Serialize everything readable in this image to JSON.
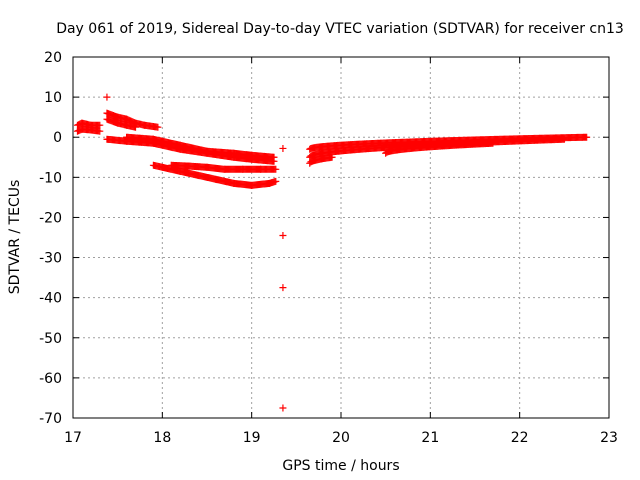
{
  "chart_data": {
    "type": "scatter",
    "title": "Day 061 of 2019, Sidereal Day-to-day VTEC variation (SDTVAR) for receiver cn13",
    "xlabel": "GPS time / hours",
    "ylabel": "SDTVAR / TECUs",
    "xlim": [
      17,
      23
    ],
    "ylim": [
      -70,
      20
    ],
    "xticks": [
      17,
      18,
      19,
      20,
      21,
      22,
      23
    ],
    "yticks": [
      20,
      10,
      0,
      -10,
      -20,
      -30,
      -40,
      -50,
      -60,
      -70
    ],
    "grid": true,
    "marker": "+",
    "color": "#ff0000",
    "series": [
      {
        "name": "sdtvar",
        "tracks": [
          {
            "x": [
              17.05,
              17.1,
              17.2,
              17.3
            ],
            "y": [
              3,
              3.5,
              3,
              3
            ]
          },
          {
            "x": [
              17.05,
              17.1,
              17.2,
              17.3
            ],
            "y": [
              1.5,
              2,
              1.8,
              1.5
            ]
          },
          {
            "x": [
              17.38,
              17.5,
              17.6,
              17.7,
              17.8,
              17.95
            ],
            "y": [
              6,
              5,
              4.5,
              3.5,
              3,
              2.5
            ]
          },
          {
            "x": [
              17.38,
              17.5,
              17.6,
              17.7
            ],
            "y": [
              4.5,
              3.5,
              3,
              2.5
            ]
          },
          {
            "x": [
              17.38,
              17.6,
              17.9,
              18.2,
              18.5,
              18.8,
              19.0,
              19.25
            ],
            "y": [
              -0.5,
              -1,
              -1.5,
              -3,
              -4,
              -5,
              -5.5,
              -6
            ]
          },
          {
            "x": [
              17.6,
              17.9,
              18.2,
              18.5,
              18.8,
              19.0,
              19.25
            ],
            "y": [
              0,
              -0.5,
              -2,
              -3.5,
              -4,
              -4.5,
              -5
            ]
          },
          {
            "x": [
              17.9,
              18.0,
              18.2,
              18.4,
              18.6,
              18.8,
              19.0,
              19.2,
              19.27
            ],
            "y": [
              -7,
              -7.5,
              -8.5,
              -9.5,
              -10.5,
              -11.5,
              -12,
              -11.5,
              -11
            ]
          },
          {
            "x": [
              18.1,
              18.3,
              18.5,
              18.7,
              18.9,
              19.1,
              19.27
            ],
            "y": [
              -7,
              -7.2,
              -7.5,
              -8,
              -8,
              -8,
              -8
            ]
          }
        ],
        "points": [
          {
            "x": 17.38,
            "y": 10
          },
          {
            "x": 19.35,
            "y": -2.8
          },
          {
            "x": 19.35,
            "y": -24.5
          },
          {
            "x": 19.35,
            "y": -37.5
          },
          {
            "x": 19.35,
            "y": -67.5
          }
        ],
        "tracks_after_gap": [
          {
            "x": 19.65,
            "y": -3,
            "x2": 22.75,
            "y2": 0
          },
          {
            "x": 19.65,
            "y": -5,
            "x2": 22.5,
            "y2": -0.5
          },
          {
            "x": 19.65,
            "y": -6.5,
            "x2": 19.9,
            "y2": -5
          },
          {
            "x": 20.5,
            "y": -4,
            "x2": 21.7,
            "y2": -1.5
          }
        ]
      }
    ]
  }
}
